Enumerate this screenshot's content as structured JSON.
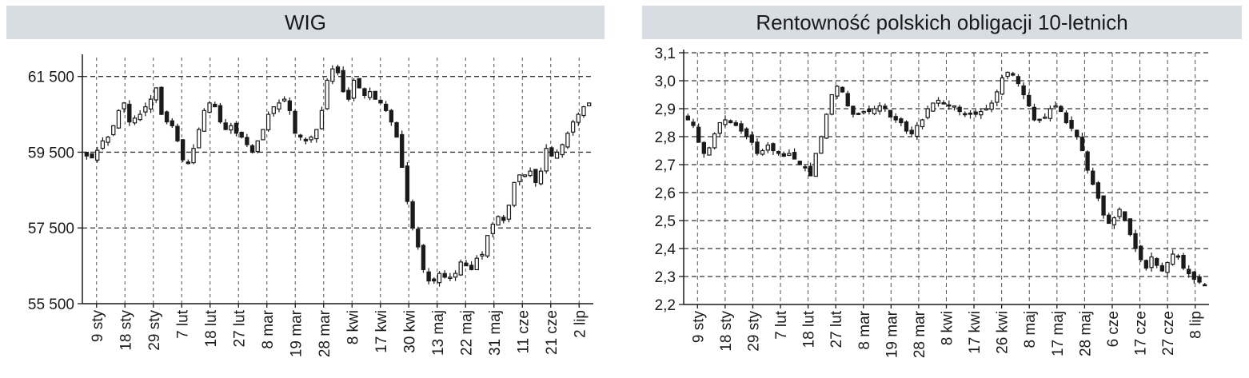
{
  "chart_data": [
    {
      "type": "candlestick",
      "title": "WIG",
      "y_ticks": [
        "61 500",
        "59 500",
        "57 500",
        "55 500"
      ],
      "y_tick_values": [
        61500,
        59500,
        57500,
        55500
      ],
      "ylim": [
        55500,
        62000
      ],
      "x_ticks": [
        "9 sty",
        "18 sty",
        "29 sty",
        "7 lut",
        "18 lut",
        "27 lut",
        "8 mar",
        "19 mar",
        "28 mar",
        "8 kwi",
        "17 kwi",
        "30 kwi",
        "13 maj",
        "22 maj",
        "31 maj",
        "11 cze",
        "21 cze",
        "2 lip"
      ],
      "grid": "dashed horizontal at y ticks, dotted vertical at x ticks",
      "colors": {
        "up": "#ffffff",
        "down": "#1a1a1a",
        "stroke": "#1a1a1a"
      },
      "close_path": [
        59400,
        59350,
        59550,
        59800,
        59900,
        60200,
        60600,
        60800,
        60300,
        60400,
        60500,
        60700,
        60900,
        61200,
        60500,
        60300,
        60200,
        59800,
        59300,
        59200,
        59600,
        60100,
        60600,
        60800,
        60700,
        60300,
        60100,
        60200,
        60000,
        59900,
        59700,
        59500,
        59800,
        60100,
        60500,
        60700,
        60800,
        60900,
        60600,
        60000,
        59900,
        59800,
        59900,
        60100,
        60600,
        61400,
        61700,
        61600,
        61100,
        60900,
        61400,
        61200,
        61000,
        61100,
        60900,
        60800,
        60600,
        60300,
        59900,
        59100,
        58200,
        57500,
        57000,
        56400,
        56100,
        56100,
        56300,
        56200,
        56200,
        56300,
        56600,
        56500,
        56400,
        56700,
        56800,
        57300,
        57600,
        57800,
        57700,
        58100,
        58700,
        58900,
        58900,
        59000,
        58700,
        59000,
        59600,
        59400,
        59500,
        59700,
        60000,
        60300,
        60500,
        60700,
        60800
      ],
      "date_labels_note": "x ticks printed rotated below the axis"
    },
    {
      "type": "candlestick",
      "title": "Rentowność polskich obligacji 10-letnich",
      "y_ticks": [
        "3,1",
        "3,0",
        "2,9",
        "2,8",
        "2,7",
        "2,6",
        "2,5",
        "2,4",
        "2,3",
        "2,2"
      ],
      "y_tick_values": [
        3.1,
        3.0,
        2.9,
        2.8,
        2.7,
        2.6,
        2.5,
        2.4,
        2.3,
        2.2
      ],
      "ylim": [
        2.2,
        3.1
      ],
      "x_ticks": [
        "9 sty",
        "18 sty",
        "29 sty",
        "7 lut",
        "18 lut",
        "27 lut",
        "8 mar",
        "19 mar",
        "28 mar",
        "8 kwi",
        "17 kwi",
        "26 kwi",
        "8 maj",
        "17 maj",
        "28 maj",
        "6 cze",
        "17 cze",
        "27 cze",
        "8 lip"
      ],
      "grid": "dashed horizontal and vertical",
      "colors": {
        "up": "#ffffff",
        "down": "#1a1a1a",
        "stroke": "#1a1a1a"
      },
      "close_path": [
        2.86,
        2.84,
        2.78,
        2.74,
        2.76,
        2.81,
        2.85,
        2.86,
        2.85,
        2.84,
        2.82,
        2.8,
        2.78,
        2.74,
        2.75,
        2.77,
        2.75,
        2.74,
        2.73,
        2.74,
        2.72,
        2.7,
        2.69,
        2.66,
        2.74,
        2.8,
        2.88,
        2.95,
        2.98,
        2.96,
        2.91,
        2.88,
        2.88,
        2.89,
        2.89,
        2.9,
        2.91,
        2.9,
        2.87,
        2.86,
        2.85,
        2.82,
        2.81,
        2.84,
        2.86,
        2.9,
        2.92,
        2.93,
        2.92,
        2.91,
        2.91,
        2.89,
        2.88,
        2.88,
        2.88,
        2.89,
        2.9,
        2.92,
        2.96,
        3.01,
        3.03,
        3.02,
        2.99,
        2.95,
        2.91,
        2.86,
        2.86,
        2.87,
        2.9,
        2.91,
        2.89,
        2.85,
        2.83,
        2.8,
        2.75,
        2.68,
        2.63,
        2.58,
        2.52,
        2.49,
        2.51,
        2.54,
        2.5,
        2.45,
        2.4,
        2.36,
        2.33,
        2.37,
        2.34,
        2.32,
        2.35,
        2.38,
        2.37,
        2.33,
        2.31,
        2.29,
        2.28,
        2.27
      ]
    }
  ]
}
